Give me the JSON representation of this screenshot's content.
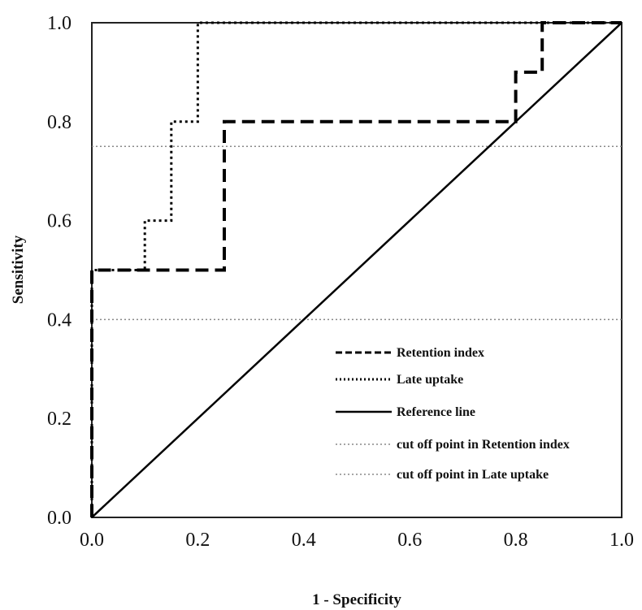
{
  "chart_data": {
    "type": "line",
    "title": "",
    "xlabel": "1 - Specificity",
    "ylabel": "Sensitivity",
    "xlim": [
      0.0,
      1.0
    ],
    "ylim": [
      0.0,
      1.0
    ],
    "x_ticks": [
      "0.0",
      "0.2",
      "0.4",
      "0.6",
      "0.8",
      "1.0"
    ],
    "y_ticks": [
      "0.0",
      "0.2",
      "0.4",
      "0.6",
      "0.8",
      "1.0"
    ],
    "grid": false,
    "legend_position": "bottom-right",
    "series": [
      {
        "name": "Retention index",
        "style": "dashed",
        "x": [
          0.0,
          0.0,
          0.25,
          0.25,
          0.8,
          0.8,
          0.85,
          0.85,
          1.0
        ],
        "y": [
          0.0,
          0.5,
          0.5,
          0.8,
          0.8,
          0.9,
          0.9,
          1.0,
          1.0
        ]
      },
      {
        "name": "Late uptake",
        "style": "dotted",
        "x": [
          0.0,
          0.0,
          0.1,
          0.1,
          0.15,
          0.15,
          0.2,
          0.2,
          1.0
        ],
        "y": [
          0.0,
          0.5,
          0.5,
          0.6,
          0.6,
          0.8,
          0.8,
          1.0,
          1.0
        ]
      },
      {
        "name": "Reference line",
        "style": "solid",
        "x": [
          0.0,
          1.0
        ],
        "y": [
          0.0,
          1.0
        ]
      },
      {
        "name": "cut off point in Retention index",
        "style": "gray-dotted",
        "x": [
          0.0,
          1.0
        ],
        "y": [
          0.75,
          0.75
        ]
      },
      {
        "name": "cut off point in Late uptake",
        "style": "gray-dotted",
        "x": [
          0.0,
          1.0
        ],
        "y": [
          0.4,
          0.4
        ]
      }
    ]
  }
}
